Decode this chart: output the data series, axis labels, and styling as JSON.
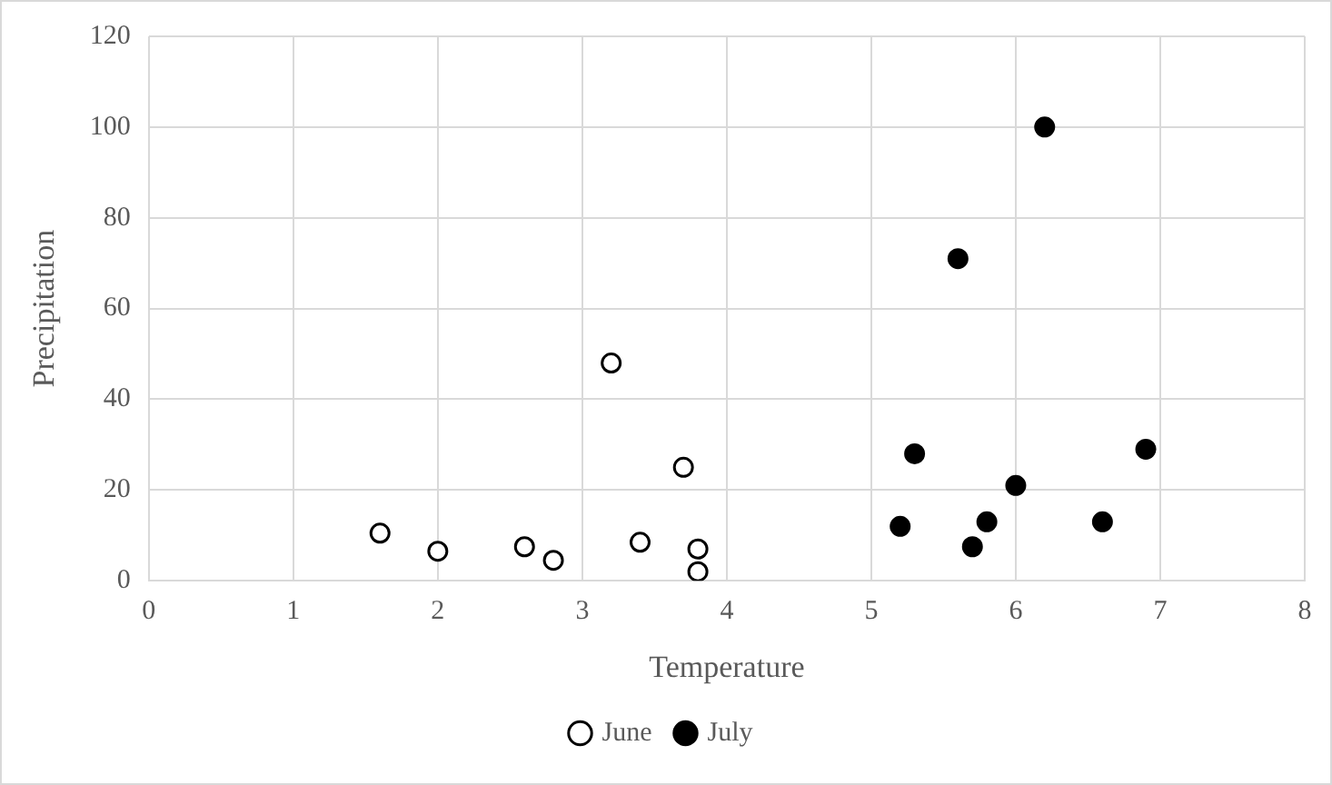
{
  "chart_data": {
    "type": "scatter",
    "xlabel": "Temperature",
    "ylabel": "Precipitation",
    "xlim": [
      0,
      8
    ],
    "xticks": [
      0,
      1,
      2,
      3,
      4,
      5,
      6,
      7,
      8
    ],
    "ylim": [
      0,
      120
    ],
    "yticks": [
      0,
      20,
      40,
      60,
      80,
      100,
      120
    ],
    "grid": true,
    "legend": "bottom",
    "marker": "circle",
    "series": [
      {
        "name": "June",
        "color": "#ffffff",
        "x": [
          1.6,
          2.0,
          2.6,
          2.8,
          3.2,
          3.4,
          3.7,
          3.8,
          3.8
        ],
        "values": [
          10.5,
          6.5,
          7.5,
          4.5,
          48,
          8.5,
          25,
          7,
          2
        ]
      },
      {
        "name": "July",
        "color": "#000000",
        "x": [
          5.2,
          5.3,
          5.6,
          5.7,
          5.8,
          6.0,
          6.2,
          6.6,
          6.9
        ],
        "values": [
          12,
          28,
          71,
          7.5,
          13,
          21,
          100,
          13,
          29
        ]
      }
    ]
  }
}
